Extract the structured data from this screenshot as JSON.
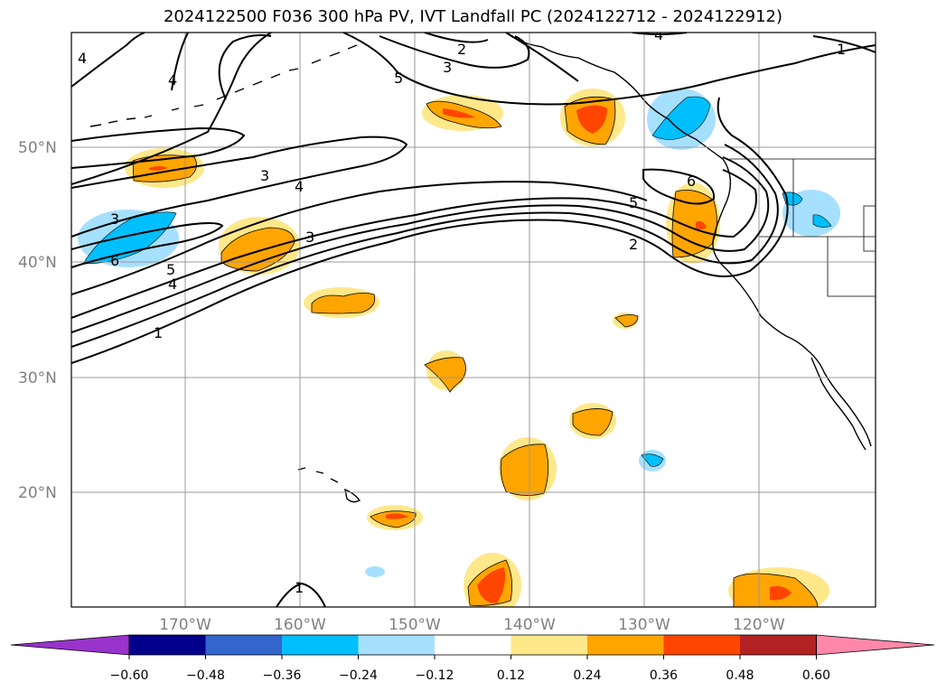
{
  "title": "2024122500 F036 300 hPa PV, IVT Landfall PC (2024122712 - 2024122912)",
  "map": {
    "lat_labels": [
      "50°N",
      "40°N",
      "30°N",
      "20°N"
    ],
    "lon_labels": [
      "170°W",
      "160°W",
      "150°W",
      "140°W",
      "130°W",
      "120°W"
    ],
    "grid_color": "#999999",
    "contour_labels": [
      "4",
      "4",
      "2",
      "3",
      "5",
      "3",
      "4",
      "3",
      "6",
      "3",
      "5",
      "4",
      "1",
      "6",
      "5",
      "2",
      "4",
      "1",
      "1"
    ]
  },
  "colorbar": {
    "colors": [
      "#9933cc",
      "#00008b",
      "#3366cc",
      "#00bfff",
      "#a6e0ff",
      "#ffffff",
      "#ffe88a",
      "#ffa500",
      "#ff4500",
      "#b22222",
      "#ff88aa"
    ],
    "tick_labels": [
      "−0.60",
      "−0.48",
      "−0.36",
      "−0.24",
      "−0.12",
      "0.12",
      "0.24",
      "0.36",
      "0.48",
      "0.60"
    ]
  }
}
